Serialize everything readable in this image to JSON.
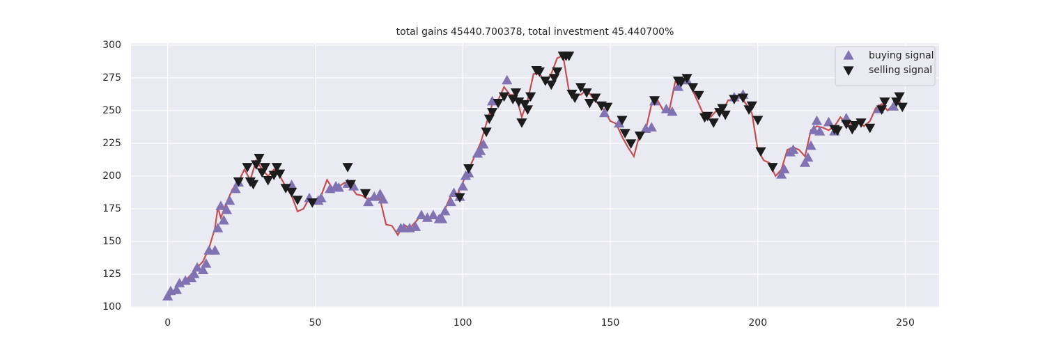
{
  "chart_data": {
    "type": "line",
    "title": "total gains 45440.700378, total investment 45.440700%",
    "xlim": [
      -12.45,
      261.45
    ],
    "ylim": [
      99.5,
      301.5
    ],
    "xticks": [
      0,
      50,
      100,
      150,
      200,
      250
    ],
    "yticks": [
      100,
      125,
      150,
      175,
      200,
      225,
      250,
      275,
      300
    ],
    "grid": true,
    "legend": "upper right",
    "series": [
      {
        "color": "#c44e52",
        "x": [
          0,
          2,
          4,
          6,
          8,
          10,
          12,
          14,
          16,
          17,
          18,
          20,
          22,
          24,
          26,
          28,
          30,
          32,
          34,
          36,
          38,
          40,
          42,
          44,
          46,
          48,
          50,
          52,
          54,
          56,
          58,
          60,
          62,
          64,
          66,
          68,
          70,
          72,
          74,
          76,
          78,
          80,
          82,
          84,
          86,
          88,
          90,
          92,
          94,
          96,
          98,
          100,
          102,
          104,
          106,
          108,
          110,
          112,
          114,
          116,
          118,
          120,
          122,
          124,
          126,
          128,
          130,
          132,
          134,
          136,
          138,
          140,
          142,
          144,
          146,
          148,
          150,
          152,
          154,
          156,
          158,
          160,
          162,
          164,
          166,
          168,
          170,
          172,
          174,
          176,
          178,
          180,
          182,
          184,
          186,
          188,
          190,
          192,
          194,
          196,
          198,
          200,
          202,
          204,
          206,
          208,
          210,
          212,
          214,
          216,
          218,
          220,
          222,
          224,
          226,
          228,
          230,
          232,
          234,
          236,
          238,
          240,
          242,
          244,
          246,
          248,
          249
        ],
        "values": [
          107,
          112,
          118,
          120,
          125,
          130,
          135,
          145,
          160,
          176,
          168,
          180,
          190,
          196,
          205,
          197,
          212,
          205,
          200,
          205,
          200,
          192,
          185,
          173,
          175,
          183,
          180,
          185,
          197,
          190,
          192,
          195,
          192,
          186,
          185,
          182,
          185,
          182,
          163,
          162,
          155,
          163,
          160,
          165,
          170,
          168,
          168,
          168,
          175,
          185,
          185,
          195,
          205,
          215,
          225,
          240,
          255,
          258,
          268,
          262,
          262,
          245,
          258,
          278,
          278,
          272,
          278,
          290,
          292,
          265,
          262,
          262,
          266,
          260,
          255,
          250,
          242,
          240,
          230,
          222,
          215,
          232,
          235,
          255,
          258,
          250,
          250,
          272,
          270,
          275,
          265,
          255,
          245,
          245,
          250,
          250,
          258,
          258,
          262,
          255,
          248,
          220,
          212,
          210,
          200,
          205,
          220,
          222,
          220,
          215,
          235,
          238,
          237,
          235,
          238,
          245,
          240,
          240,
          242,
          238,
          242,
          252,
          255,
          250,
          255,
          258,
          250
        ]
      },
      {
        "name": "buying signal",
        "color": "#8172b2",
        "marker": "triangle-up",
        "x": [
          0,
          1,
          3,
          4,
          6,
          8,
          9,
          10,
          12,
          13,
          14,
          16,
          17,
          18,
          19,
          20,
          21,
          23,
          24,
          42,
          48,
          51,
          52,
          55,
          57,
          58,
          61,
          63,
          68,
          70,
          72,
          73,
          79,
          80,
          82,
          84,
          86,
          88,
          90,
          92,
          93,
          94,
          96,
          97,
          99,
          100,
          101,
          102,
          105,
          106,
          107,
          110,
          115,
          148,
          153,
          162,
          164,
          165,
          169,
          171,
          173,
          176,
          192,
          195,
          208,
          209,
          211,
          212,
          216,
          217,
          218,
          219,
          220,
          221,
          224,
          226,
          230,
          241,
          246
        ],
        "values": [
          108,
          112,
          113,
          118,
          120,
          122,
          125,
          130,
          128,
          133,
          143,
          143,
          160,
          177,
          166,
          174,
          181,
          190,
          195,
          193,
          183,
          181,
          183,
          190,
          192,
          191,
          194,
          192,
          180,
          184,
          186,
          182,
          160,
          160,
          160,
          161,
          170,
          168,
          170,
          167,
          167,
          173,
          180,
          187,
          184,
          192,
          200,
          202,
          217,
          219,
          224,
          257,
          273,
          248,
          240,
          236,
          237,
          257,
          251,
          249,
          268,
          273,
          260,
          262,
          201,
          205,
          218,
          220,
          210,
          214,
          223,
          235,
          242,
          234,
          241,
          234,
          244,
          251,
          253
        ]
      },
      {
        "name": "selling signal",
        "color": "#1c1c1c",
        "marker": "triangle-down",
        "x": [
          24,
          27,
          28,
          29,
          30,
          31,
          32,
          33,
          34,
          36,
          37,
          38,
          40,
          42,
          44,
          49,
          61,
          62,
          67,
          99,
          102,
          108,
          109,
          110,
          112,
          114,
          117,
          118,
          119,
          120,
          121,
          122,
          123,
          125,
          126,
          128,
          130,
          131,
          132,
          134,
          135,
          136,
          137,
          138,
          140,
          142,
          143,
          145,
          147,
          149,
          154,
          155,
          157,
          160,
          165,
          173,
          174,
          176,
          178,
          180,
          182,
          183,
          185,
          187,
          188,
          189,
          192,
          195,
          197,
          198,
          200,
          201,
          205,
          226,
          227,
          230,
          232,
          233,
          235,
          238,
          242,
          243,
          247,
          248,
          249
        ],
        "values": [
          196,
          207,
          196,
          194,
          209,
          214,
          203,
          207,
          197,
          201,
          207,
          202,
          191,
          188,
          182,
          180,
          207,
          194,
          187,
          184,
          206,
          234,
          244,
          249,
          256,
          261,
          259,
          264,
          257,
          241,
          255,
          251,
          261,
          281,
          280,
          273,
          270,
          275,
          280,
          292,
          292,
          292,
          263,
          260,
          268,
          264,
          256,
          260,
          254,
          253,
          243,
          233,
          225,
          231,
          258,
          273,
          272,
          275,
          268,
          262,
          245,
          246,
          241,
          249,
          252,
          247,
          259,
          260,
          251,
          254,
          243,
          219,
          207,
          236,
          235,
          240,
          236,
          239,
          241,
          237,
          251,
          257,
          257,
          261,
          253
        ]
      }
    ]
  }
}
